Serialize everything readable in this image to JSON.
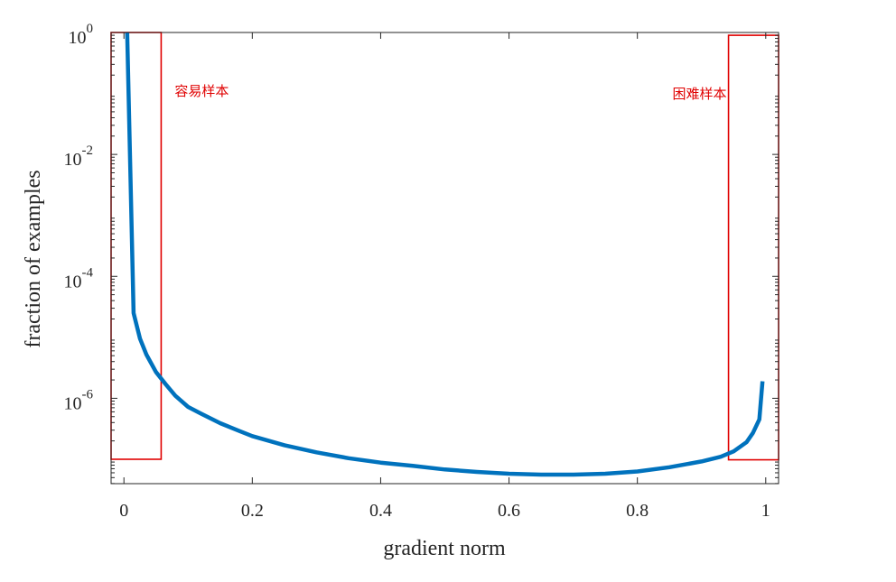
{
  "chart_data": {
    "type": "line",
    "xlabel": "gradient norm",
    "ylabel": "fraction of examples",
    "xlim": [
      -0.02,
      1.02
    ],
    "ylim_log10": [
      -7.4,
      0
    ],
    "y_scale": "log",
    "x_ticks": [
      {
        "value": 0,
        "label": "0"
      },
      {
        "value": 0.2,
        "label": "0.2"
      },
      {
        "value": 0.4,
        "label": "0.4"
      },
      {
        "value": 0.6,
        "label": "0.6"
      },
      {
        "value": 0.8,
        "label": "0.8"
      },
      {
        "value": 1,
        "label": "1"
      }
    ],
    "y_ticks": [
      {
        "value": 1,
        "base": "10",
        "exp": "0"
      },
      {
        "value": 0.01,
        "base": "10",
        "exp": "-2"
      },
      {
        "value": 0.0001,
        "base": "10",
        "exp": "-4"
      },
      {
        "value": 1e-06,
        "base": "10",
        "exp": "-6"
      }
    ],
    "series": [
      {
        "color": "#0072BD",
        "x": [
          0.005,
          0.015,
          0.025,
          0.035,
          0.05,
          0.065,
          0.08,
          0.1,
          0.12,
          0.15,
          0.18,
          0.2,
          0.25,
          0.3,
          0.35,
          0.4,
          0.45,
          0.5,
          0.55,
          0.6,
          0.65,
          0.7,
          0.75,
          0.8,
          0.85,
          0.9,
          0.93,
          0.95,
          0.97,
          0.98,
          0.99,
          0.995
        ],
        "y": [
          1.0,
          2.5e-05,
          9.5e-06,
          5.2e-06,
          2.7e-06,
          1.7e-06,
          1.1e-06,
          7.2e-07,
          5.6e-07,
          3.9e-07,
          2.9e-07,
          2.4e-07,
          1.7e-07,
          1.3e-07,
          1.04e-07,
          8.8e-08,
          7.8e-08,
          6.8e-08,
          6.2e-08,
          5.8e-08,
          5.6e-08,
          5.6e-08,
          5.8e-08,
          6.3e-08,
          7.4e-08,
          9.2e-08,
          1.1e-07,
          1.35e-07,
          1.9e-07,
          2.7e-07,
          4.5e-07,
          1.9e-06
        ]
      }
    ],
    "annotations": [
      {
        "text": "容易样本",
        "box_x": [
          -0.02,
          0.058
        ],
        "box_y": [
          1.0,
          1e-07
        ]
      },
      {
        "text": "困难样本",
        "box_x": [
          0.942,
          1.02
        ],
        "box_y": [
          0.9,
          9.8e-08
        ]
      }
    ],
    "grid": false,
    "legend": "none"
  }
}
